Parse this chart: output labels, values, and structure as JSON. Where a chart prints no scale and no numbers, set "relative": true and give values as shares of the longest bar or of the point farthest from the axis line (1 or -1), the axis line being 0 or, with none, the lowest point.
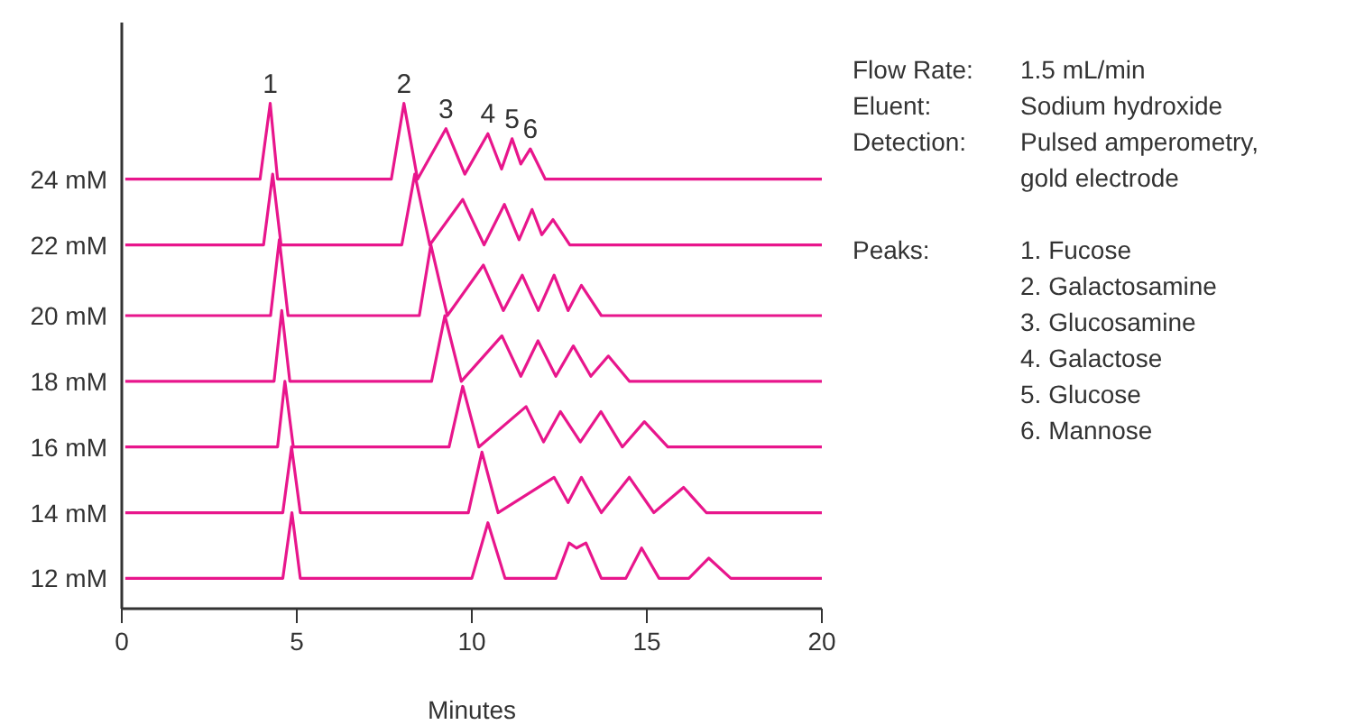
{
  "chart_data": {
    "type": "line",
    "relative": true,
    "xlabel": "Minutes",
    "xlim": [
      0,
      20
    ],
    "xticks": [
      0,
      5,
      10,
      15,
      20
    ],
    "grid": false,
    "legend": false,
    "marker": "none",
    "line_style": "solid",
    "series": [
      {
        "name": "24 mM",
        "color": "#e8168c",
        "x": [
          0.1,
          3.95,
          4.24,
          4.45,
          7.7,
          8.06,
          8.45,
          9.26,
          9.8,
          10.46,
          10.85,
          11.15,
          11.4,
          11.67,
          12.1,
          20
        ],
        "values": [
          0.85,
          0.85,
          1.0,
          0.85,
          0.85,
          1.0,
          0.85,
          0.95,
          0.86,
          0.94,
          0.87,
          0.93,
          0.88,
          0.91,
          0.85,
          0.85
        ]
      },
      {
        "name": "22 mM",
        "color": "#e8168c",
        "x": [
          0.1,
          4.05,
          4.31,
          4.55,
          8.0,
          8.37,
          8.8,
          9.74,
          10.35,
          10.93,
          11.35,
          11.72,
          12.0,
          12.32,
          12.8,
          20
        ],
        "values": [
          0.72,
          0.72,
          0.86,
          0.72,
          0.72,
          0.86,
          0.72,
          0.81,
          0.72,
          0.8,
          0.73,
          0.79,
          0.74,
          0.77,
          0.72,
          0.72
        ]
      },
      {
        "name": "20 mM",
        "color": "#e8168c",
        "x": [
          0.1,
          4.25,
          4.5,
          4.75,
          8.5,
          8.83,
          9.3,
          10.33,
          10.9,
          11.44,
          11.9,
          12.35,
          12.75,
          13.13,
          13.7,
          20
        ],
        "values": [
          0.58,
          0.58,
          0.73,
          0.58,
          0.58,
          0.72,
          0.58,
          0.68,
          0.59,
          0.66,
          0.59,
          0.66,
          0.59,
          0.64,
          0.58,
          0.58
        ]
      },
      {
        "name": "18 mM",
        "color": "#e8168c",
        "x": [
          0.1,
          4.35,
          4.57,
          4.8,
          8.85,
          9.23,
          9.7,
          10.86,
          11.4,
          11.89,
          12.4,
          12.9,
          13.4,
          13.9,
          14.5,
          20
        ],
        "values": [
          0.45,
          0.45,
          0.59,
          0.45,
          0.45,
          0.58,
          0.45,
          0.54,
          0.46,
          0.53,
          0.46,
          0.52,
          0.46,
          0.5,
          0.45,
          0.45
        ]
      },
      {
        "name": "16 mM",
        "color": "#e8168c",
        "x": [
          0.1,
          4.45,
          4.66,
          4.9,
          9.35,
          9.74,
          10.2,
          11.55,
          12.05,
          12.53,
          13.1,
          13.69,
          14.3,
          14.93,
          15.6,
          20
        ],
        "values": [
          0.32,
          0.32,
          0.45,
          0.32,
          0.32,
          0.44,
          0.32,
          0.4,
          0.33,
          0.39,
          0.33,
          0.39,
          0.32,
          0.37,
          0.32,
          0.32
        ]
      },
      {
        "name": "14 mM",
        "color": "#e8168c",
        "x": [
          0.1,
          4.6,
          4.85,
          5.1,
          9.9,
          10.29,
          10.75,
          12.35,
          12.75,
          13.13,
          13.7,
          14.5,
          15.2,
          16.05,
          16.7,
          20
        ],
        "values": [
          0.19,
          0.19,
          0.32,
          0.19,
          0.19,
          0.31,
          0.19,
          0.26,
          0.21,
          0.26,
          0.19,
          0.26,
          0.19,
          0.24,
          0.19,
          0.19
        ]
      },
      {
        "name": "12 mM",
        "color": "#e8168c",
        "x": [
          0.1,
          4.6,
          4.86,
          5.1,
          10.0,
          10.46,
          10.95,
          12.4,
          12.78,
          12.99,
          13.26,
          13.7,
          14.4,
          14.85,
          15.35,
          16.2,
          16.77,
          17.4,
          20
        ],
        "values": [
          0.06,
          0.06,
          0.19,
          0.06,
          0.06,
          0.17,
          0.06,
          0.06,
          0.13,
          0.12,
          0.13,
          0.06,
          0.06,
          0.12,
          0.06,
          0.06,
          0.1,
          0.06,
          0.06
        ]
      }
    ],
    "annotations": [
      {
        "text": "1",
        "x": 4.24,
        "y": 1.0
      },
      {
        "text": "2",
        "x": 8.06,
        "y": 1.0
      },
      {
        "text": "3",
        "x": 9.26,
        "y": 0.95
      },
      {
        "text": "4",
        "x": 10.46,
        "y": 0.94
      },
      {
        "text": "5",
        "x": 11.15,
        "y": 0.93
      },
      {
        "text": "6",
        "x": 11.67,
        "y": 0.91
      },
      "Flow Rate:",
      "1.5 mL/min",
      "Eluent:",
      "Sodium hydroxide",
      "Detection:",
      "Pulsed amperometry, gold electrode",
      "Peaks:",
      "1. Fucose",
      "2. Galactosamine",
      "3. Glucosamine",
      "4. Galactose",
      "5. Glucose",
      "6. Mannose"
    ]
  }
}
